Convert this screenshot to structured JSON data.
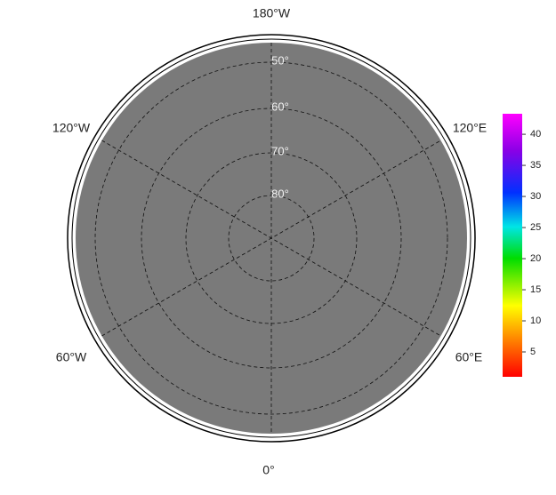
{
  "map": {
    "meridian_labels": [
      "180°W",
      "120°W",
      "120°E",
      "60°W",
      "60°E",
      "0°"
    ],
    "parallel_labels": [
      "50°",
      "60°",
      "70°",
      "80°"
    ]
  },
  "colorbar": {
    "lim": [
      1,
      43.3
    ],
    "ticks": [
      5,
      10,
      15,
      20,
      25,
      30,
      35,
      40
    ]
  }
}
